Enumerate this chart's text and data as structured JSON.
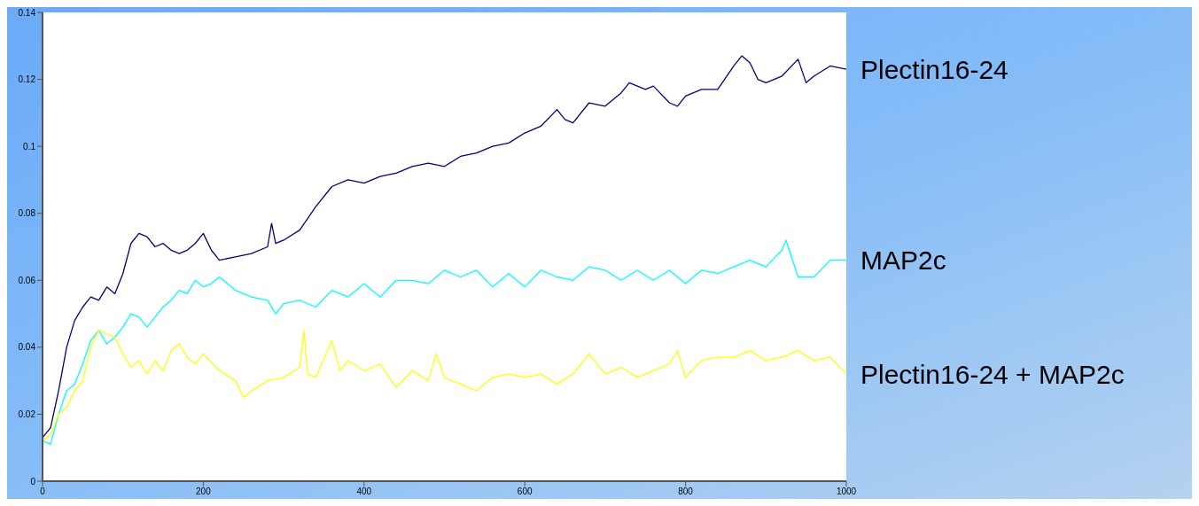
{
  "chart_data": {
    "type": "line",
    "xlim": [
      0,
      1000
    ],
    "xticks": [
      0,
      200,
      400,
      600,
      800,
      1000
    ],
    "ylim": [
      0,
      0.14
    ],
    "yticks": [
      0,
      0.02,
      0.04,
      0.06,
      0.08,
      0.1,
      0.12,
      0.14
    ],
    "grid": false,
    "series": [
      {
        "name": "Plectin16-24",
        "color": "#000080",
        "x": [
          0,
          10,
          20,
          30,
          40,
          50,
          60,
          70,
          80,
          90,
          100,
          110,
          120,
          130,
          140,
          150,
          160,
          170,
          180,
          190,
          200,
          210,
          220,
          240,
          260,
          280,
          285,
          290,
          300,
          320,
          340,
          360,
          380,
          400,
          420,
          440,
          460,
          480,
          500,
          520,
          540,
          560,
          580,
          600,
          620,
          640,
          650,
          660,
          680,
          700,
          720,
          730,
          750,
          760,
          780,
          790,
          800,
          820,
          840,
          860,
          870,
          880,
          890,
          900,
          920,
          940,
          950,
          960,
          980,
          1000
        ],
        "values": [
          0.013,
          0.016,
          0.027,
          0.04,
          0.048,
          0.052,
          0.055,
          0.054,
          0.058,
          0.056,
          0.062,
          0.071,
          0.074,
          0.073,
          0.07,
          0.071,
          0.069,
          0.068,
          0.069,
          0.071,
          0.074,
          0.069,
          0.066,
          0.067,
          0.068,
          0.07,
          0.077,
          0.071,
          0.072,
          0.075,
          0.082,
          0.088,
          0.09,
          0.089,
          0.091,
          0.092,
          0.094,
          0.095,
          0.094,
          0.097,
          0.098,
          0.1,
          0.101,
          0.104,
          0.106,
          0.111,
          0.108,
          0.107,
          0.113,
          0.112,
          0.116,
          0.119,
          0.117,
          0.118,
          0.113,
          0.112,
          0.115,
          0.117,
          0.117,
          0.124,
          0.127,
          0.125,
          0.12,
          0.119,
          0.121,
          0.126,
          0.119,
          0.121,
          0.124,
          0.123
        ]
      },
      {
        "name": "MAP2c",
        "color": "#00ffff",
        "x": [
          0,
          10,
          20,
          30,
          40,
          50,
          60,
          70,
          80,
          90,
          100,
          110,
          120,
          130,
          140,
          150,
          160,
          170,
          180,
          190,
          200,
          210,
          220,
          240,
          260,
          280,
          290,
          300,
          320,
          340,
          360,
          380,
          400,
          420,
          440,
          460,
          480,
          500,
          520,
          540,
          560,
          580,
          600,
          620,
          640,
          660,
          680,
          700,
          720,
          740,
          760,
          780,
          800,
          820,
          840,
          860,
          880,
          900,
          920,
          925,
          940,
          960,
          980,
          1000
        ],
        "values": [
          0.012,
          0.011,
          0.02,
          0.027,
          0.029,
          0.035,
          0.042,
          0.045,
          0.041,
          0.043,
          0.046,
          0.05,
          0.049,
          0.046,
          0.049,
          0.052,
          0.054,
          0.057,
          0.056,
          0.06,
          0.058,
          0.059,
          0.061,
          0.057,
          0.055,
          0.054,
          0.05,
          0.053,
          0.054,
          0.052,
          0.057,
          0.055,
          0.059,
          0.055,
          0.06,
          0.06,
          0.059,
          0.063,
          0.061,
          0.063,
          0.058,
          0.062,
          0.058,
          0.063,
          0.061,
          0.06,
          0.064,
          0.063,
          0.06,
          0.063,
          0.06,
          0.063,
          0.059,
          0.063,
          0.062,
          0.064,
          0.066,
          0.064,
          0.069,
          0.072,
          0.061,
          0.061,
          0.066,
          0.066
        ]
      },
      {
        "name": "Plectin16-24 + MAP2c",
        "color": "#ffff00",
        "x": [
          0,
          10,
          20,
          30,
          40,
          50,
          60,
          70,
          80,
          90,
          100,
          110,
          120,
          130,
          140,
          150,
          160,
          170,
          180,
          190,
          200,
          220,
          240,
          250,
          260,
          280,
          300,
          320,
          325,
          330,
          340,
          360,
          370,
          380,
          400,
          420,
          440,
          460,
          480,
          490,
          500,
          520,
          540,
          560,
          580,
          600,
          620,
          640,
          660,
          680,
          700,
          720,
          740,
          760,
          780,
          790,
          800,
          820,
          840,
          860,
          880,
          900,
          920,
          940,
          960,
          980,
          1000
        ],
        "values": [
          0.012,
          0.014,
          0.02,
          0.022,
          0.027,
          0.03,
          0.04,
          0.045,
          0.044,
          0.043,
          0.038,
          0.034,
          0.036,
          0.032,
          0.036,
          0.033,
          0.039,
          0.041,
          0.037,
          0.035,
          0.038,
          0.033,
          0.03,
          0.025,
          0.027,
          0.03,
          0.031,
          0.034,
          0.045,
          0.032,
          0.031,
          0.042,
          0.033,
          0.036,
          0.033,
          0.035,
          0.028,
          0.033,
          0.03,
          0.038,
          0.031,
          0.029,
          0.027,
          0.031,
          0.032,
          0.031,
          0.032,
          0.029,
          0.032,
          0.038,
          0.032,
          0.034,
          0.031,
          0.033,
          0.035,
          0.039,
          0.031,
          0.036,
          0.037,
          0.037,
          0.039,
          0.036,
          0.037,
          0.039,
          0.036,
          0.037,
          0.032
        ]
      }
    ]
  }
}
